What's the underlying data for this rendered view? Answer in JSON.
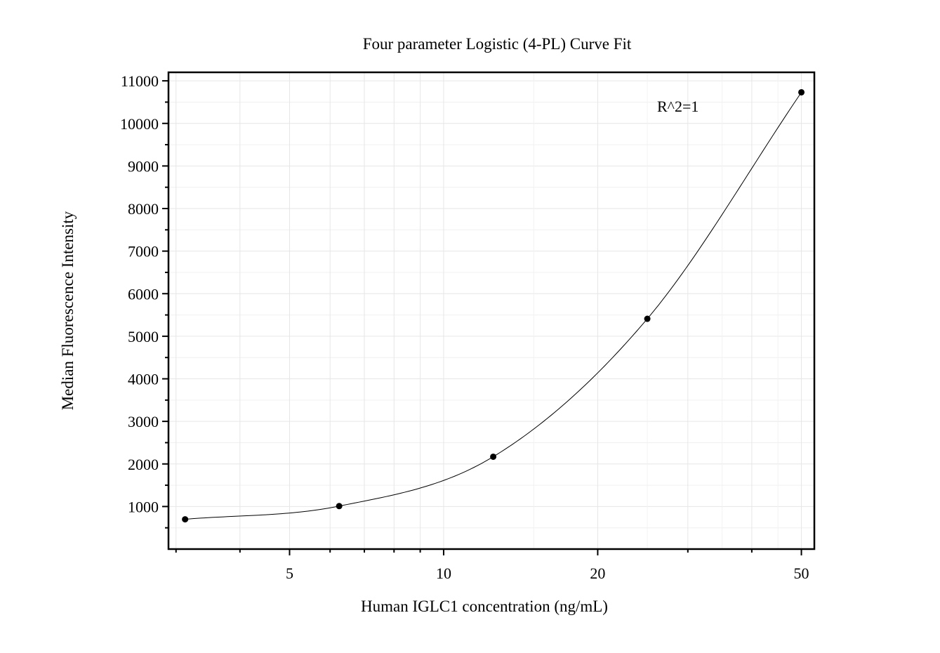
{
  "chart_data": {
    "type": "scatter",
    "title": "Four parameter Logistic (4-PL) Curve Fit",
    "xlabel": "Human IGLC1 concentration (ng/mL)",
    "ylabel": "Median Fluorescence Intensity",
    "x_scale": "log",
    "xlim": [
      2.9,
      53
    ],
    "ylim": [
      0,
      11200
    ],
    "x_ticks": [
      5,
      10,
      20,
      50
    ],
    "x_tick_labels": [
      "5",
      "10",
      "20",
      "50"
    ],
    "y_ticks": [
      1000,
      2000,
      3000,
      4000,
      5000,
      6000,
      7000,
      8000,
      9000,
      10000,
      11000
    ],
    "y_tick_labels": [
      "1000",
      "2000",
      "3000",
      "4000",
      "5000",
      "6000",
      "7000",
      "8000",
      "9000",
      "10000",
      "11000"
    ],
    "grid": true,
    "annotation": "R^2=1",
    "series": [
      {
        "points": [
          {
            "x": 3.125,
            "y": 700
          },
          {
            "x": 6.25,
            "y": 1010
          },
          {
            "x": 12.5,
            "y": 2170
          },
          {
            "x": 25,
            "y": 5410
          },
          {
            "x": 50,
            "y": 10730
          }
        ],
        "fit": "4PL",
        "colors": {
          "marker": "#000000",
          "line": "#000000"
        }
      }
    ]
  }
}
